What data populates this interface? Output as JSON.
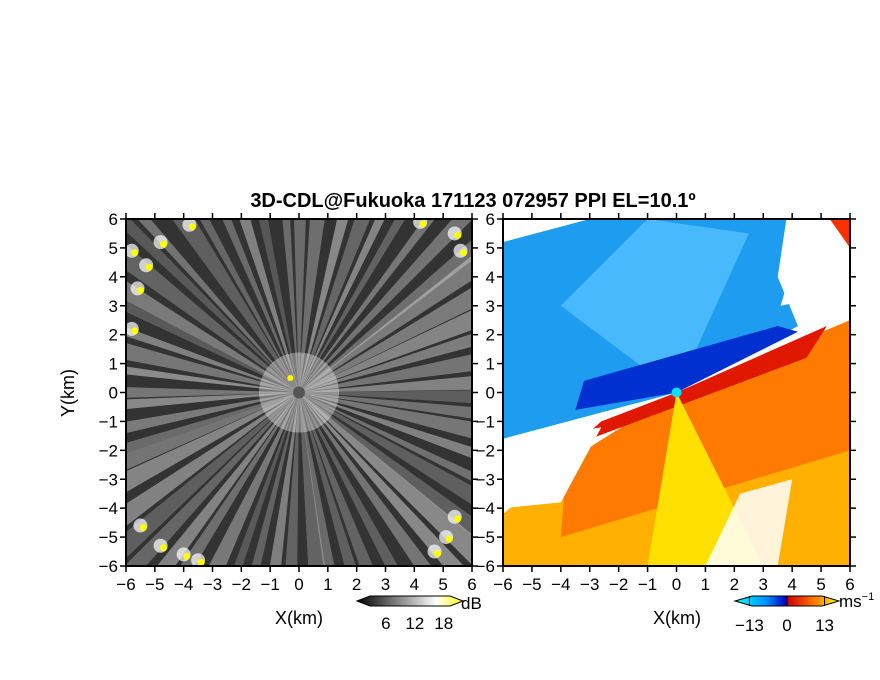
{
  "chart_data": [
    {
      "type": "heatmap",
      "title": "3D-CDL@Fukuoka 171123 072957 PPI EL=10.1º",
      "panel": "left",
      "quantity": "signal intensity",
      "xlabel": "X(km)",
      "ylabel": "Y(km)",
      "xlim": [
        -6,
        6
      ],
      "ylim": [
        -6,
        6
      ],
      "xticks": [
        "−6",
        "−5",
        "−4",
        "−3",
        "−2",
        "−1",
        "0",
        "1",
        "2",
        "3",
        "4",
        "5",
        "6"
      ],
      "yticks": [
        "−6",
        "−5",
        "−4",
        "−3",
        "−2",
        "−1",
        "0",
        "1",
        "2",
        "3",
        "4",
        "5",
        "6"
      ],
      "colorbar": {
        "unit": "dB",
        "ticks": [
          "6",
          "12",
          "18"
        ],
        "tick_values": [
          6,
          12,
          18
        ],
        "range": [
          0,
          22
        ],
        "colors": [
          "#000000",
          "#ffffff",
          "#ffff00"
        ]
      },
      "description_values": {
        "radar_center": [
          0,
          0
        ],
        "background_db": 5,
        "beam_db": 14,
        "edge_clutter_db": 18
      }
    },
    {
      "type": "heatmap",
      "panel": "right",
      "quantity": "doppler velocity",
      "xlabel": "X(km)",
      "xlim": [
        -6,
        6
      ],
      "ylim": [
        -6,
        6
      ],
      "xticks": [
        "−6",
        "−5",
        "−4",
        "−3",
        "−2",
        "−1",
        "0",
        "1",
        "2",
        "3",
        "4",
        "5",
        "6"
      ],
      "yticks": [
        "−6",
        "−5",
        "−4",
        "−3",
        "−2",
        "−1",
        "0",
        "1",
        "2",
        "3",
        "4",
        "5",
        "6"
      ],
      "colorbar": {
        "unit": "ms",
        "unit_exp": "−1",
        "ticks": [
          "−13",
          "0",
          "13"
        ],
        "tick_values": [
          -13,
          0,
          13
        ],
        "range": [
          -18,
          18
        ],
        "colors": [
          "#00ffff",
          "#00a0ff",
          "#0000c0",
          "#d00000",
          "#ff7000",
          "#ffff00"
        ]
      },
      "description_values": {
        "zero_line_direction_deg": 30,
        "approaching_side": "north-west",
        "receding_side": "south-east",
        "min_velocity": -13,
        "max_velocity": 13
      }
    }
  ]
}
